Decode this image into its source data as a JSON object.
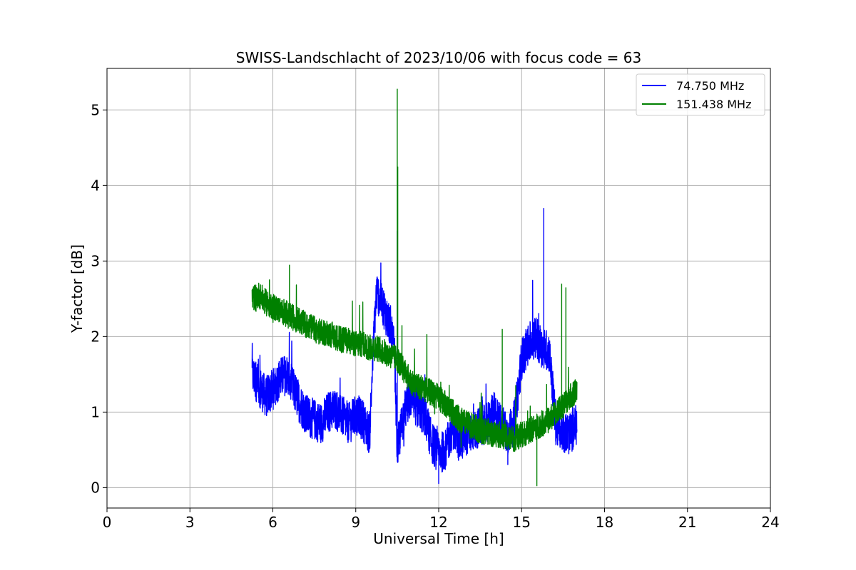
{
  "chart_data": {
    "type": "line",
    "title": "SWISS-Landschlacht of 2023/10/06 with focus code = 63",
    "xlabel": "Universal Time [h]",
    "ylabel": "Y-factor [dB]",
    "xlim": [
      0,
      24
    ],
    "ylim": [
      -0.27,
      5.55
    ],
    "xticks": [
      0,
      3,
      6,
      9,
      12,
      15,
      18,
      21,
      24
    ],
    "yticks": [
      0,
      1,
      2,
      3,
      4,
      5
    ],
    "grid": true,
    "legend_position": "top-right",
    "series": [
      {
        "name": "  74.750 MHz",
        "color": "#0000ff",
        "x": [
          5.25,
          5.5,
          5.75,
          6.0,
          6.25,
          6.5,
          6.75,
          7.0,
          7.25,
          7.5,
          7.75,
          8.0,
          8.25,
          8.5,
          8.75,
          9.0,
          9.25,
          9.5,
          9.65,
          9.75,
          10.0,
          10.25,
          10.4,
          10.5,
          10.75,
          11.0,
          11.25,
          11.5,
          11.75,
          12.0,
          12.25,
          12.5,
          12.75,
          13.0,
          13.25,
          13.5,
          13.75,
          14.0,
          14.25,
          14.5,
          14.75,
          15.0,
          15.25,
          15.5,
          15.75,
          16.0,
          16.25,
          16.5,
          16.75,
          17.0
        ],
        "y": [
          1.5,
          1.35,
          1.2,
          1.3,
          1.45,
          1.5,
          1.3,
          1.1,
          0.95,
          0.9,
          0.85,
          1.0,
          1.05,
          0.95,
          0.85,
          0.95,
          0.9,
          0.7,
          2.0,
          2.6,
          2.4,
          2.1,
          1.8,
          0.5,
          1.0,
          1.2,
          1.05,
          0.95,
          0.6,
          0.45,
          0.5,
          0.8,
          0.6,
          0.7,
          0.75,
          0.8,
          0.85,
          1.0,
          0.85,
          0.7,
          0.9,
          1.7,
          1.9,
          2.0,
          1.85,
          1.8,
          0.8,
          0.75,
          0.7,
          0.85
        ],
        "spikes": [
          [
            10.5,
            3.4
          ],
          [
            11.5,
            1.5
          ],
          [
            14.5,
            0.3
          ],
          [
            15.8,
            3.7
          ],
          [
            12.0,
            0.05
          ]
        ]
      },
      {
        "name": "151.438 MHz",
        "color": "#008000",
        "x": [
          5.25,
          5.5,
          5.75,
          6.0,
          6.25,
          6.5,
          6.75,
          7.0,
          7.25,
          7.5,
          7.75,
          8.0,
          8.25,
          8.5,
          8.75,
          9.0,
          9.25,
          9.5,
          9.75,
          10.0,
          10.25,
          10.5,
          10.75,
          11.0,
          11.25,
          11.5,
          11.75,
          12.0,
          12.25,
          12.5,
          12.75,
          13.0,
          13.25,
          13.5,
          13.75,
          14.0,
          14.25,
          14.5,
          14.75,
          15.0,
          15.25,
          15.5,
          15.75,
          16.0,
          16.25,
          16.5,
          16.75,
          17.0
        ],
        "y": [
          2.5,
          2.55,
          2.45,
          2.4,
          2.35,
          2.3,
          2.25,
          2.2,
          2.15,
          2.1,
          2.05,
          2.05,
          2.0,
          1.95,
          1.95,
          1.9,
          1.9,
          1.85,
          1.85,
          1.8,
          1.75,
          1.7,
          1.55,
          1.4,
          1.35,
          1.3,
          1.25,
          1.2,
          1.1,
          1.0,
          0.9,
          0.85,
          0.8,
          0.75,
          0.75,
          0.7,
          0.7,
          0.65,
          0.65,
          0.7,
          0.75,
          0.8,
          0.85,
          0.9,
          1.0,
          1.1,
          1.2,
          1.3
        ],
        "spikes": [
          [
            10.5,
            5.28
          ],
          [
            10.52,
            4.25
          ],
          [
            15.55,
            0.02
          ],
          [
            16.45,
            2.7
          ],
          [
            16.6,
            2.65
          ],
          [
            6.6,
            2.95
          ],
          [
            14.3,
            2.1
          ]
        ]
      }
    ]
  }
}
